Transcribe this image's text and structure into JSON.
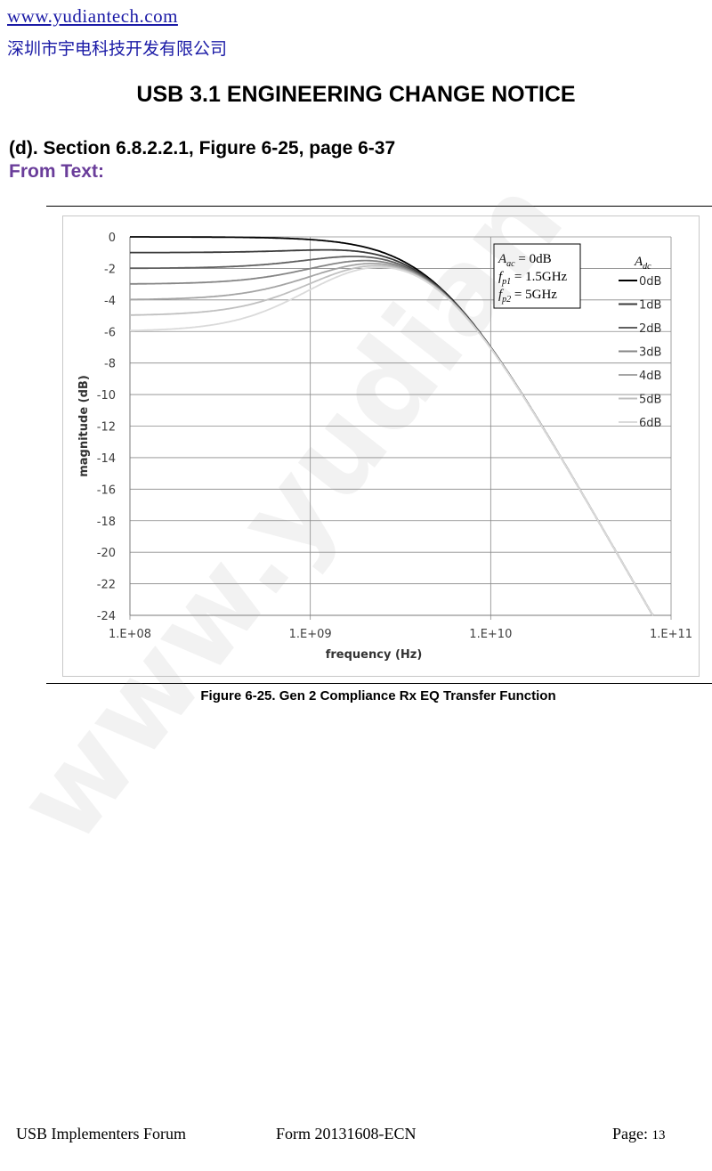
{
  "header": {
    "url": "www.yudiantech.com",
    "company": "深圳市宇电科技开发有限公司"
  },
  "doc_title": "USB 3.1 ENGINEERING CHANGE NOTICE",
  "section_heading": "(d). Section 6.8.2.2.1, Figure 6-25, page 6-37",
  "from_text": "From Text:",
  "caption": "Figure 6-25. Gen 2 Compliance Rx EQ Transfer Function",
  "watermark": "www.yudian",
  "footer": {
    "left": "USB Implementers Forum",
    "center": "Form 20131608-ECN",
    "right_label": "Page:",
    "page_number": "13"
  },
  "chart_data": {
    "type": "line",
    "xlabel": "frequency (Hz)",
    "ylabel": "magnitude (dB)",
    "x_scale": "log",
    "xlim": [
      100000000.0,
      100000000000.0
    ],
    "ylim": [
      -24,
      0
    ],
    "x_ticks": [
      "1.E+08",
      "1.E+09",
      "1.E+10",
      "1.E+11"
    ],
    "x_tick_values": [
      100000000.0,
      1000000000.0,
      10000000000.0,
      100000000000.0
    ],
    "y_ticks": [
      0,
      -2,
      -4,
      -6,
      -8,
      -10,
      -12,
      -14,
      -16,
      -18,
      -20,
      -22,
      -24
    ],
    "grid": true,
    "legend_position": "right",
    "legend_title": "Adc",
    "annotation": [
      "Aac = 0dB",
      "fp1 = 1.5GHz",
      "fp2 = 5GHz"
    ],
    "params": {
      "Aac_dB": 0,
      "fp1_Hz": 1500000000.0,
      "fp2_Hz": 5000000000.0
    },
    "series": [
      {
        "name": "0dB",
        "adc_dB": 0,
        "color": "#000000"
      },
      {
        "name": "1dB",
        "adc_dB": -1,
        "color": "#3a3a3a"
      },
      {
        "name": "2dB",
        "adc_dB": -2,
        "color": "#606060"
      },
      {
        "name": "3dB",
        "adc_dB": -3,
        "color": "#858585"
      },
      {
        "name": "4dB",
        "adc_dB": -4,
        "color": "#a5a5a5"
      },
      {
        "name": "5dB",
        "adc_dB": -5,
        "color": "#c0c0c0"
      },
      {
        "name": "6dB",
        "adc_dB": -6,
        "color": "#dadada"
      }
    ]
  }
}
